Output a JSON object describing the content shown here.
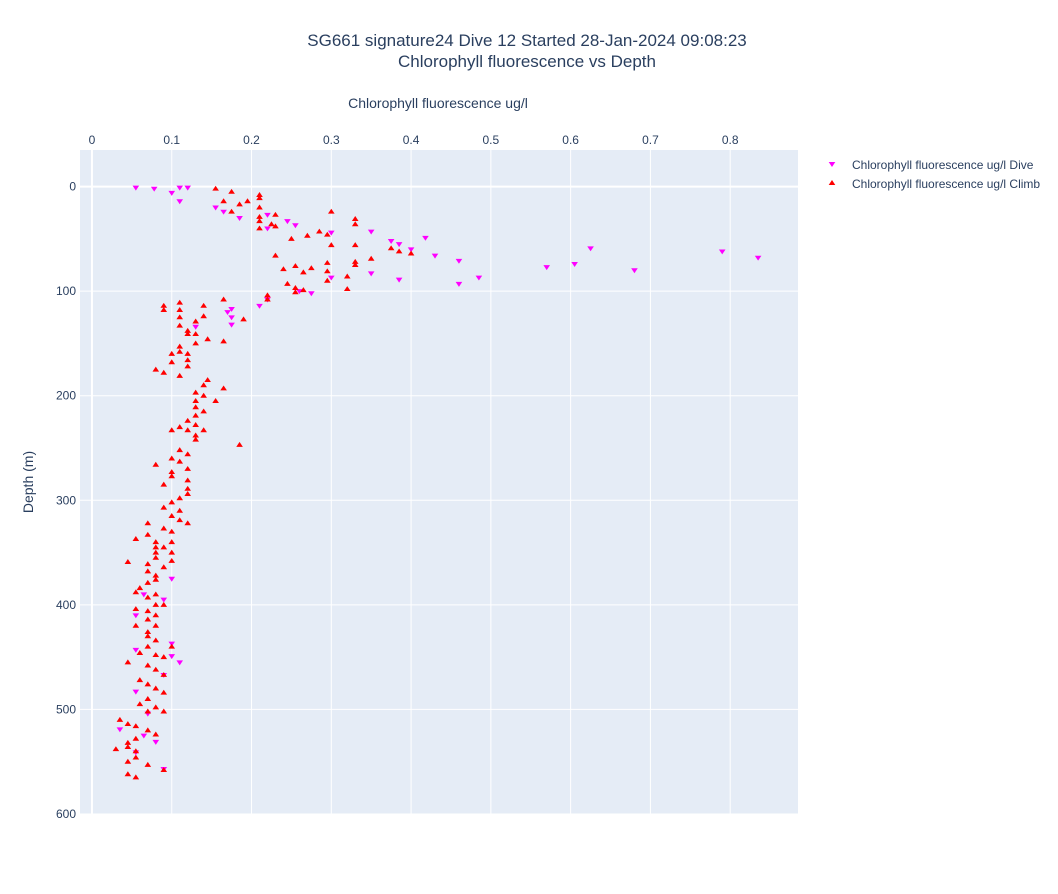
{
  "chart_data": {
    "type": "scatter",
    "title_lines": [
      "SG661 signature24 Dive 12 Started 28-Jan-2024 09:08:23",
      "Chlorophyll fluorescence vs Depth"
    ],
    "xlabel": "Chlorophyll fluorescence ug/l",
    "ylabel": "Depth (m)",
    "xlim": [
      -0.015,
      0.885
    ],
    "ylim": [
      600,
      -35
    ],
    "x_ticks": [
      0,
      0.1,
      0.2,
      0.3,
      0.4,
      0.5,
      0.6,
      0.7,
      0.8
    ],
    "x_tick_labels": [
      "0",
      "0.1",
      "0.2",
      "0.3",
      "0.4",
      "0.5",
      "0.6",
      "0.7",
      "0.8"
    ],
    "y_ticks": [
      0,
      100,
      200,
      300,
      400,
      500,
      600
    ],
    "y_tick_labels": [
      "0",
      "100",
      "200",
      "300",
      "400",
      "500",
      "600"
    ],
    "x_axis_position": "top",
    "y_reversed": true,
    "grid": true,
    "legend_position": "right-top",
    "series": [
      {
        "name": "Chlorophyll fluorescence ug/l Dive",
        "color": "#ff00ff",
        "marker": "triangle-down",
        "points": [
          [
            0.055,
            1
          ],
          [
            0.078,
            2
          ],
          [
            0.11,
            1
          ],
          [
            0.12,
            1
          ],
          [
            0.1,
            6
          ],
          [
            0.11,
            14
          ],
          [
            0.155,
            20
          ],
          [
            0.165,
            24
          ],
          [
            0.185,
            30
          ],
          [
            0.22,
            27
          ],
          [
            0.245,
            33
          ],
          [
            0.255,
            37
          ],
          [
            0.22,
            40
          ],
          [
            0.3,
            44
          ],
          [
            0.35,
            43
          ],
          [
            0.375,
            52
          ],
          [
            0.385,
            55
          ],
          [
            0.418,
            49
          ],
          [
            0.4,
            60
          ],
          [
            0.43,
            66
          ],
          [
            0.46,
            71
          ],
          [
            0.57,
            77
          ],
          [
            0.605,
            74
          ],
          [
            0.625,
            59
          ],
          [
            0.68,
            80
          ],
          [
            0.79,
            62
          ],
          [
            0.835,
            68
          ],
          [
            0.485,
            87
          ],
          [
            0.46,
            93
          ],
          [
            0.385,
            89
          ],
          [
            0.35,
            83
          ],
          [
            0.3,
            87
          ],
          [
            0.275,
            102
          ],
          [
            0.26,
            100
          ],
          [
            0.22,
            108
          ],
          [
            0.21,
            114
          ],
          [
            0.175,
            117
          ],
          [
            0.17,
            120
          ],
          [
            0.175,
            125
          ],
          [
            0.175,
            132
          ],
          [
            0.13,
            134
          ],
          [
            0.1,
            375
          ],
          [
            0.09,
            395
          ],
          [
            0.055,
            410
          ],
          [
            0.065,
            390
          ],
          [
            0.1,
            437
          ],
          [
            0.055,
            443
          ],
          [
            0.1,
            449
          ],
          [
            0.11,
            455
          ],
          [
            0.09,
            467
          ],
          [
            0.055,
            483
          ],
          [
            0.07,
            504
          ],
          [
            0.035,
            519
          ],
          [
            0.065,
            525
          ],
          [
            0.08,
            531
          ],
          [
            0.055,
            541
          ],
          [
            0.09,
            557
          ]
        ]
      },
      {
        "name": "Chlorophyll fluorescence ug/l Climb",
        "color": "#ff0000",
        "marker": "triangle-up",
        "points": [
          [
            0.155,
            2
          ],
          [
            0.175,
            5
          ],
          [
            0.21,
            8
          ],
          [
            0.21,
            11
          ],
          [
            0.165,
            14
          ],
          [
            0.185,
            17
          ],
          [
            0.195,
            14
          ],
          [
            0.21,
            20
          ],
          [
            0.175,
            24
          ],
          [
            0.21,
            29
          ],
          [
            0.23,
            27
          ],
          [
            0.21,
            33
          ],
          [
            0.225,
            36
          ],
          [
            0.21,
            40
          ],
          [
            0.23,
            38
          ],
          [
            0.3,
            24
          ],
          [
            0.295,
            46
          ],
          [
            0.285,
            43
          ],
          [
            0.27,
            47
          ],
          [
            0.25,
            50
          ],
          [
            0.33,
            36
          ],
          [
            0.33,
            56
          ],
          [
            0.3,
            56
          ],
          [
            0.33,
            31
          ],
          [
            0.375,
            59
          ],
          [
            0.385,
            62
          ],
          [
            0.4,
            64
          ],
          [
            0.35,
            69
          ],
          [
            0.33,
            72
          ],
          [
            0.33,
            75
          ],
          [
            0.295,
            73
          ],
          [
            0.23,
            66
          ],
          [
            0.255,
            76
          ],
          [
            0.24,
            79
          ],
          [
            0.275,
            78
          ],
          [
            0.265,
            82
          ],
          [
            0.295,
            81
          ],
          [
            0.32,
            86
          ],
          [
            0.295,
            90
          ],
          [
            0.245,
            93
          ],
          [
            0.255,
            97
          ],
          [
            0.265,
            99
          ],
          [
            0.255,
            101
          ],
          [
            0.32,
            98
          ],
          [
            0.22,
            104
          ],
          [
            0.22,
            108
          ],
          [
            0.165,
            108
          ],
          [
            0.14,
            114
          ],
          [
            0.11,
            111
          ],
          [
            0.09,
            114
          ],
          [
            0.11,
            118
          ],
          [
            0.09,
            118
          ],
          [
            0.14,
            124
          ],
          [
            0.11,
            125
          ],
          [
            0.19,
            127
          ],
          [
            0.13,
            129
          ],
          [
            0.11,
            133
          ],
          [
            0.12,
            138
          ],
          [
            0.12,
            141
          ],
          [
            0.13,
            141
          ],
          [
            0.145,
            146
          ],
          [
            0.165,
            148
          ],
          [
            0.13,
            150
          ],
          [
            0.11,
            153
          ],
          [
            0.11,
            158
          ],
          [
            0.12,
            160
          ],
          [
            0.1,
            160
          ],
          [
            0.12,
            166
          ],
          [
            0.1,
            168
          ],
          [
            0.12,
            172
          ],
          [
            0.08,
            175
          ],
          [
            0.09,
            178
          ],
          [
            0.11,
            181
          ],
          [
            0.145,
            185
          ],
          [
            0.14,
            190
          ],
          [
            0.13,
            197
          ],
          [
            0.165,
            193
          ],
          [
            0.14,
            200
          ],
          [
            0.13,
            205
          ],
          [
            0.155,
            205
          ],
          [
            0.13,
            211
          ],
          [
            0.14,
            215
          ],
          [
            0.13,
            219
          ],
          [
            0.12,
            224
          ],
          [
            0.13,
            228
          ],
          [
            0.12,
            233
          ],
          [
            0.14,
            233
          ],
          [
            0.1,
            233
          ],
          [
            0.11,
            230
          ],
          [
            0.13,
            238
          ],
          [
            0.13,
            242
          ],
          [
            0.185,
            247
          ],
          [
            0.11,
            252
          ],
          [
            0.12,
            256
          ],
          [
            0.1,
            260
          ],
          [
            0.11,
            263
          ],
          [
            0.08,
            266
          ],
          [
            0.12,
            270
          ],
          [
            0.1,
            273
          ],
          [
            0.1,
            277
          ],
          [
            0.12,
            281
          ],
          [
            0.09,
            285
          ],
          [
            0.12,
            289
          ],
          [
            0.12,
            294
          ],
          [
            0.11,
            298
          ],
          [
            0.1,
            302
          ],
          [
            0.09,
            307
          ],
          [
            0.11,
            310
          ],
          [
            0.1,
            315
          ],
          [
            0.11,
            319
          ],
          [
            0.07,
            322
          ],
          [
            0.12,
            322
          ],
          [
            0.09,
            327
          ],
          [
            0.1,
            330
          ],
          [
            0.07,
            333
          ],
          [
            0.055,
            337
          ],
          [
            0.08,
            340
          ],
          [
            0.1,
            340
          ],
          [
            0.08,
            345
          ],
          [
            0.09,
            345
          ],
          [
            0.08,
            350
          ],
          [
            0.1,
            350
          ],
          [
            0.08,
            355
          ],
          [
            0.1,
            358
          ],
          [
            0.045,
            359
          ],
          [
            0.07,
            361
          ],
          [
            0.09,
            364
          ],
          [
            0.07,
            368
          ],
          [
            0.08,
            372
          ],
          [
            0.08,
            376
          ],
          [
            0.07,
            379
          ],
          [
            0.06,
            384
          ],
          [
            0.055,
            388
          ],
          [
            0.08,
            390
          ],
          [
            0.07,
            393
          ],
          [
            0.08,
            400
          ],
          [
            0.09,
            400
          ],
          [
            0.055,
            404
          ],
          [
            0.07,
            406
          ],
          [
            0.08,
            410
          ],
          [
            0.07,
            414
          ],
          [
            0.055,
            420
          ],
          [
            0.08,
            420
          ],
          [
            0.07,
            426
          ],
          [
            0.07,
            430
          ],
          [
            0.08,
            434
          ],
          [
            0.07,
            440
          ],
          [
            0.1,
            440
          ],
          [
            0.06,
            446
          ],
          [
            0.08,
            448
          ],
          [
            0.09,
            450
          ],
          [
            0.045,
            455
          ],
          [
            0.07,
            458
          ],
          [
            0.08,
            462
          ],
          [
            0.09,
            467
          ],
          [
            0.06,
            472
          ],
          [
            0.07,
            476
          ],
          [
            0.08,
            480
          ],
          [
            0.09,
            484
          ],
          [
            0.07,
            490
          ],
          [
            0.06,
            495
          ],
          [
            0.08,
            498
          ],
          [
            0.07,
            502
          ],
          [
            0.09,
            502
          ],
          [
            0.035,
            510
          ],
          [
            0.045,
            514
          ],
          [
            0.055,
            516
          ],
          [
            0.07,
            520
          ],
          [
            0.08,
            524
          ],
          [
            0.055,
            528
          ],
          [
            0.045,
            532
          ],
          [
            0.045,
            536
          ],
          [
            0.03,
            538
          ],
          [
            0.055,
            540
          ],
          [
            0.055,
            546
          ],
          [
            0.045,
            550
          ],
          [
            0.07,
            553
          ],
          [
            0.09,
            558
          ],
          [
            0.045,
            562
          ],
          [
            0.055,
            565
          ]
        ]
      }
    ]
  }
}
